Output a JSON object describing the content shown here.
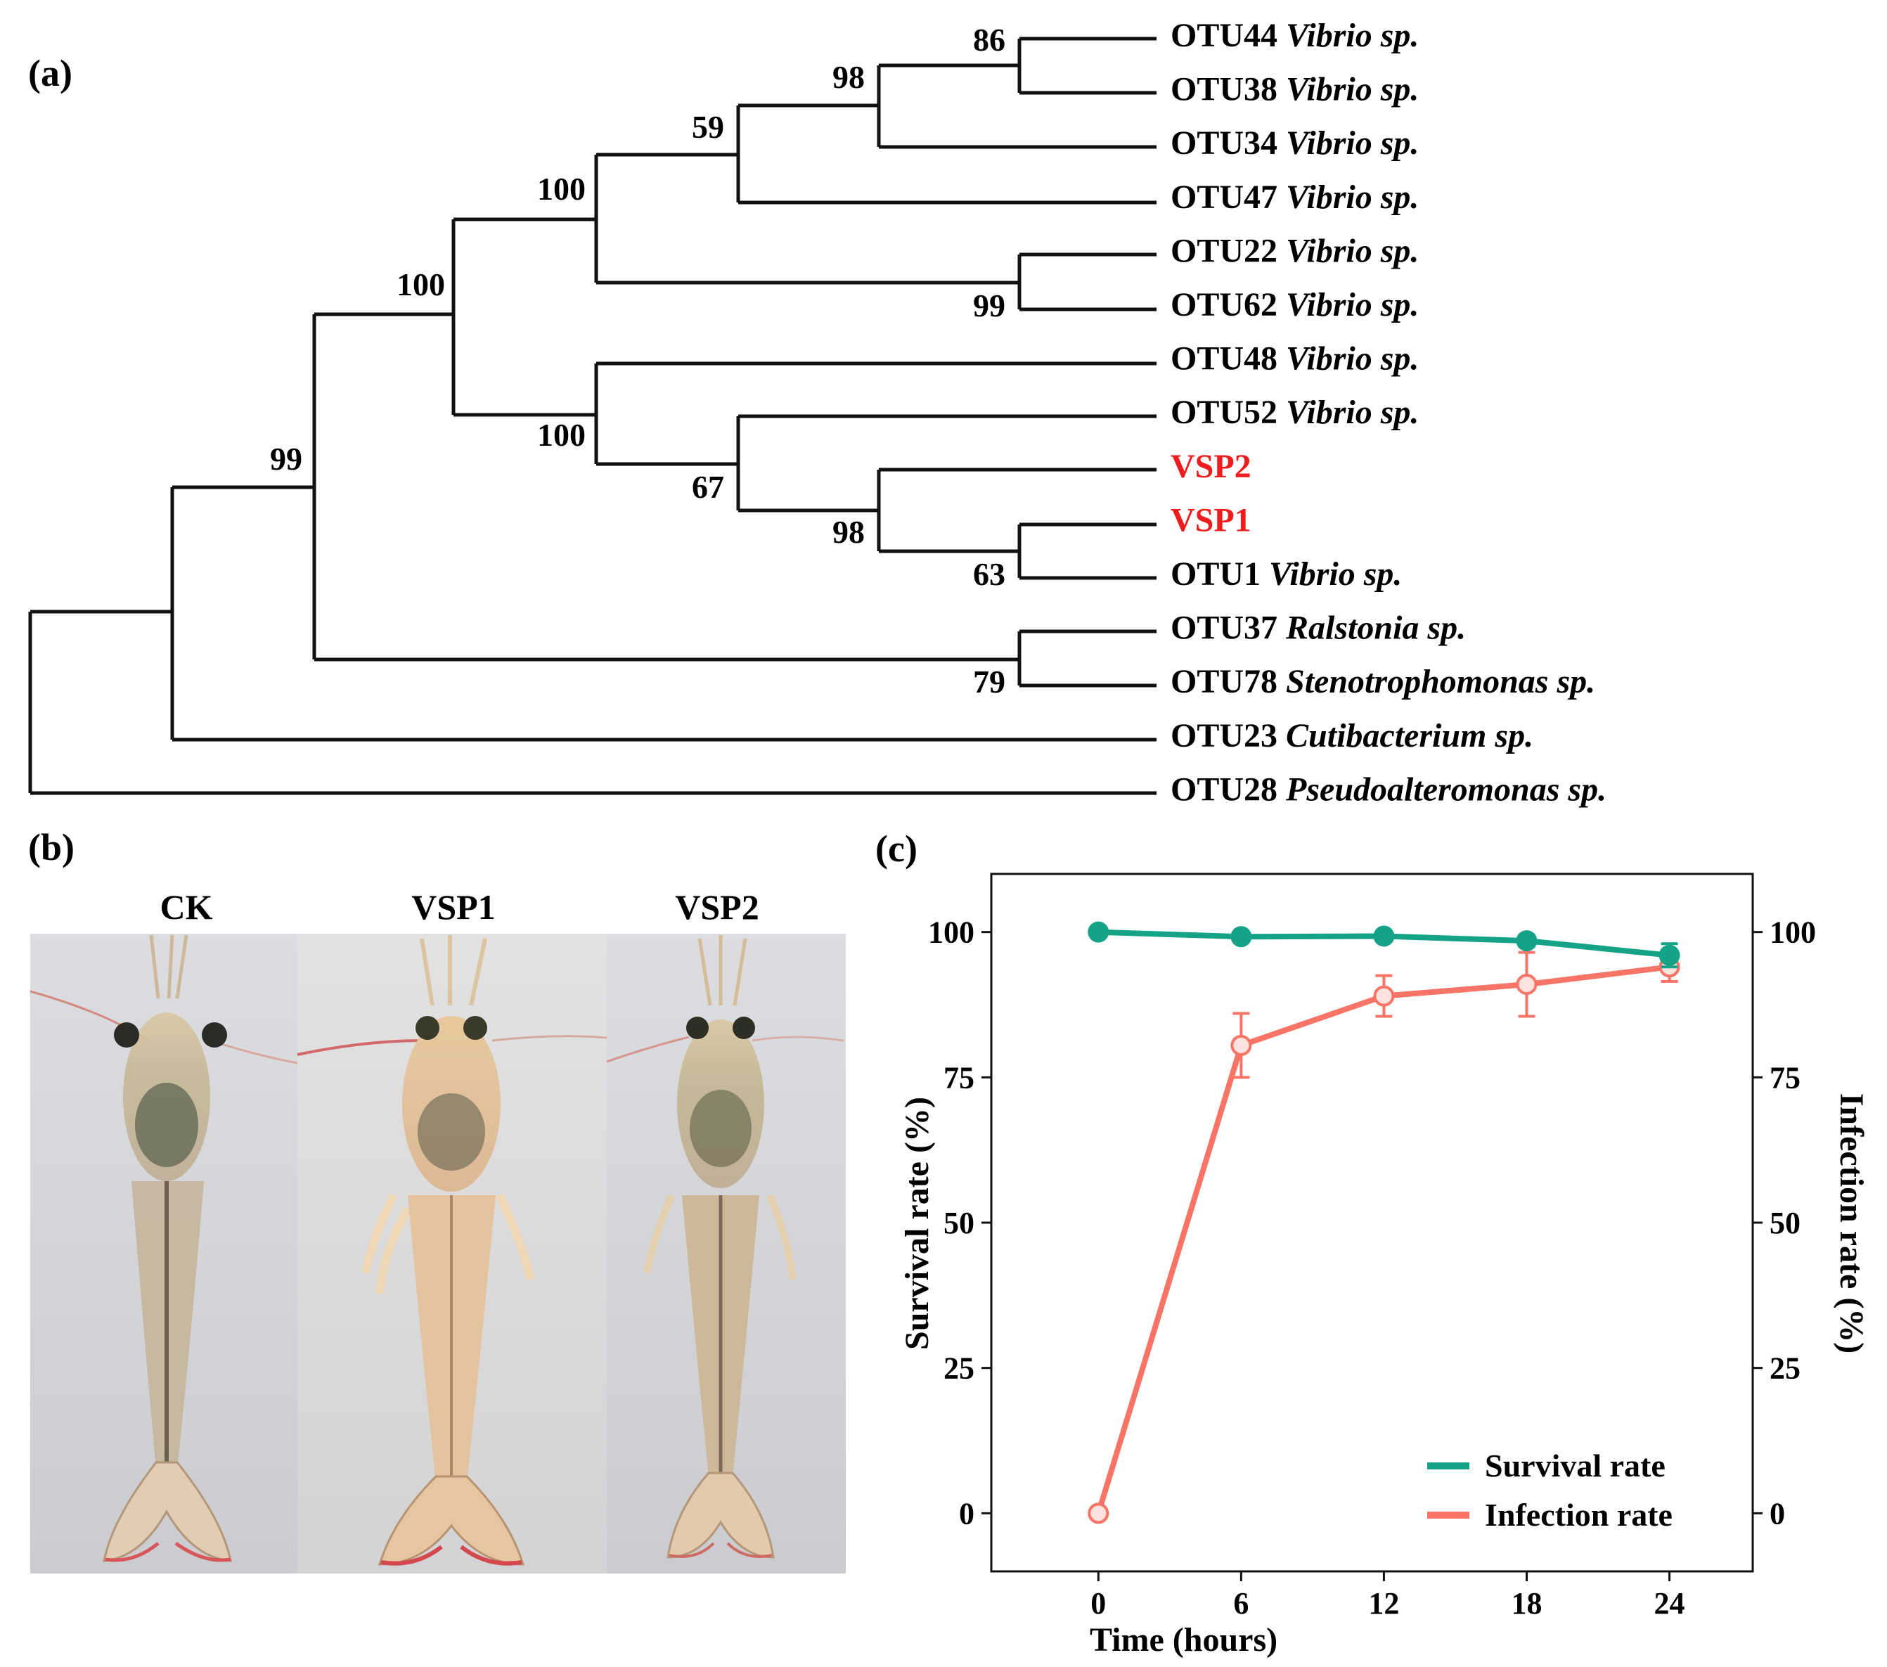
{
  "panels": {
    "a": "(a)",
    "b": "(b)",
    "c": "(c)"
  },
  "tree": {
    "leaves": [
      {
        "id": "OTU44",
        "genus": "Vibrio sp.",
        "highlight": false
      },
      {
        "id": "OTU38",
        "genus": "Vibrio sp.",
        "highlight": false
      },
      {
        "id": "OTU34",
        "genus": "Vibrio sp.",
        "highlight": false
      },
      {
        "id": "OTU47",
        "genus": "Vibrio sp.",
        "highlight": false
      },
      {
        "id": "OTU22",
        "genus": "Vibrio sp.",
        "highlight": false
      },
      {
        "id": "OTU62",
        "genus": "Vibrio sp.",
        "highlight": false
      },
      {
        "id": "OTU48",
        "genus": "Vibrio sp.",
        "highlight": false
      },
      {
        "id": "OTU52",
        "genus": "Vibrio sp.",
        "highlight": false
      },
      {
        "id": "VSP2",
        "genus": "",
        "highlight": true
      },
      {
        "id": "VSP1",
        "genus": "",
        "highlight": true
      },
      {
        "id": "OTU1",
        "genus": "Vibrio sp.",
        "highlight": false
      },
      {
        "id": "OTU37",
        "genus": "Ralstonia sp.",
        "highlight": false
      },
      {
        "id": "OTU78",
        "genus": "Stenotrophomonas sp.",
        "highlight": false
      },
      {
        "id": "OTU23",
        "genus": "Cutibacterium sp.",
        "highlight": false
      },
      {
        "id": "OTU28",
        "genus": "Pseudoalteromonas sp.",
        "highlight": false
      }
    ],
    "bootstrap": [
      "86",
      "98",
      "59",
      "100",
      "99",
      "100",
      "100",
      "67",
      "98",
      "63",
      "99",
      "79"
    ],
    "highlight_color": "#ee1c1c"
  },
  "photos": {
    "labels": [
      "CK",
      "VSP1",
      "VSP2"
    ]
  },
  "chart_data": {
    "type": "line",
    "x": [
      0,
      6,
      12,
      18,
      24
    ],
    "xticks": [
      "0",
      "6",
      "12",
      "18",
      "24"
    ],
    "xlim": [
      -4.5,
      27.5
    ],
    "xlabel": "Time (hours)",
    "ylabel": "Survival rate (%)",
    "y2label": "Infection rate (%)",
    "ylim": [
      -10,
      110
    ],
    "yticks": [
      "0",
      "25",
      "50",
      "75",
      "100"
    ],
    "y2ticks": [
      "0",
      "25",
      "50",
      "75",
      "100"
    ],
    "series": [
      {
        "name": "Survival rate",
        "axis": "left",
        "color": "#15a387",
        "values": [
          100,
          99.2,
          99.3,
          98.5,
          96
        ],
        "errors": [
          0,
          0.3,
          0.3,
          1.0,
          2.0
        ]
      },
      {
        "name": "Infection rate",
        "axis": "right",
        "color": "#f77466",
        "values": [
          0,
          80.5,
          89,
          91,
          94
        ],
        "errors": [
          0,
          5.5,
          3.5,
          5.5,
          2.5
        ]
      }
    ],
    "legend": "bottom-right"
  }
}
